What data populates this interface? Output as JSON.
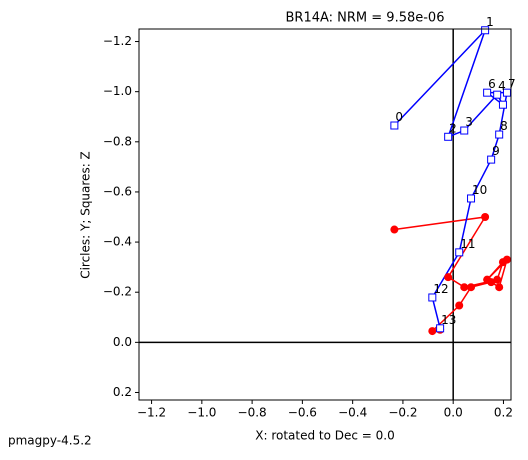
{
  "chart_data": {
    "type": "line",
    "title": "BR14A: NRM =  9.58e-06",
    "xlabel": "X: rotated to Dec =     0.0",
    "ylabel": "Circles: Y; Squares: Z",
    "footer": "pmagpy-4.5.2",
    "x": [
      -0.234,
      0.127,
      -0.02,
      0.044,
      0.175,
      0.198,
      0.135,
      0.214,
      0.183,
      0.151,
      0.071,
      0.024,
      -0.083,
      -0.052
    ],
    "point_labels": [
      "0",
      "1",
      "2",
      "3",
      "4",
      null,
      "6",
      "7",
      "8",
      "9",
      "10",
      "11",
      "12",
      "13"
    ],
    "series": [
      {
        "marker": "circle",
        "color": "red",
        "values": [
          -0.45,
          -0.5,
          -0.26,
          -0.22,
          -0.25,
          -0.32,
          -0.25,
          -0.33,
          -0.22,
          -0.24,
          -0.22,
          -0.147,
          -0.045,
          -0.05
        ]
      },
      {
        "marker": "square",
        "color": "blue",
        "values": [
          -0.865,
          -1.245,
          -0.82,
          -0.845,
          -0.988,
          -0.948,
          -0.996,
          -0.996,
          -0.829,
          -0.729,
          -0.574,
          -0.359,
          -0.179,
          -0.056
        ]
      }
    ],
    "label_series": 1,
    "xlim": [
      -1.25,
      0.23
    ],
    "ylim": [
      -1.25,
      0.23
    ],
    "invert_y": true,
    "zero_lines": true,
    "xticks": [
      {
        "value": -1.2,
        "label": "−1.2"
      },
      {
        "value": -1.0,
        "label": "−1.0"
      },
      {
        "value": -0.8,
        "label": "−0.8"
      },
      {
        "value": -0.6,
        "label": "−0.6"
      },
      {
        "value": -0.4,
        "label": "−0.4"
      },
      {
        "value": -0.2,
        "label": "−0.2"
      },
      {
        "value": 0,
        "label": "0.0"
      },
      0.2
    ],
    "yticks": [
      {
        "value": -1.2,
        "label": "−1.2"
      },
      {
        "value": -1.0,
        "label": "−1.0"
      },
      {
        "value": -0.8,
        "label": "−0.8"
      },
      {
        "value": -0.6,
        "label": "−0.6"
      },
      {
        "value": -0.4,
        "label": "−0.4"
      },
      {
        "value": -0.2,
        "label": "−0.2"
      },
      {
        "value": 0,
        "label": "0.0"
      },
      0.2
    ]
  }
}
